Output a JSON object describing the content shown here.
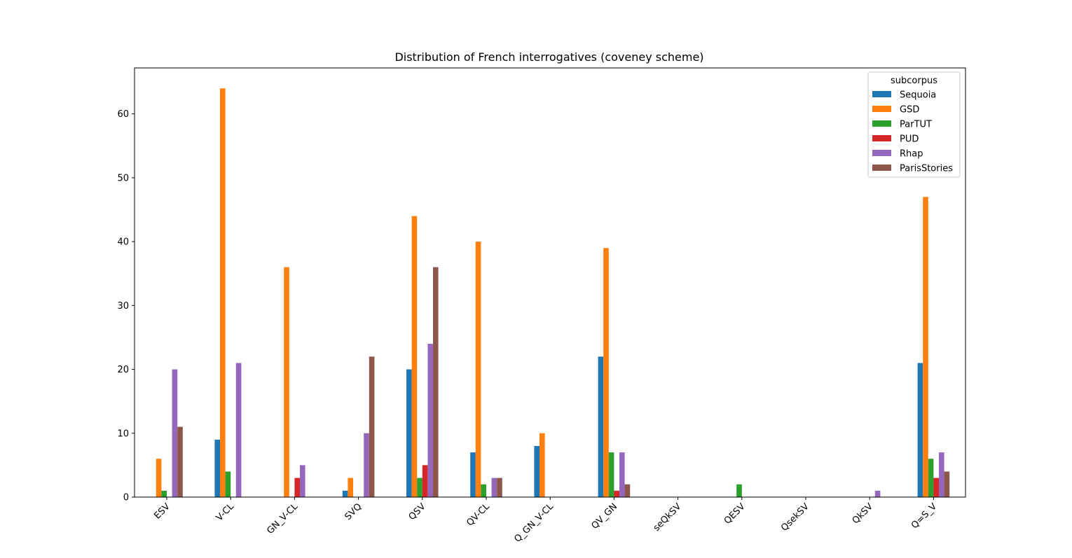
{
  "chart_data": {
    "type": "bar",
    "title": "Distribution of French interrogatives  (coveney scheme)",
    "xlabel": "",
    "ylabel": "",
    "ylim": [
      0,
      67.2
    ],
    "yticks": [
      0,
      10,
      20,
      30,
      40,
      50,
      60
    ],
    "grid": false,
    "legend": {
      "title": "subcorpus",
      "placement": "top-right"
    },
    "categories": [
      "ESV",
      "V-CL",
      "GN_V-CL",
      "SVQ",
      "QSV",
      "QV-CL",
      "Q_GN_V-CL",
      "QV_GN",
      "seQkSV",
      "QESV",
      "QsekSV",
      "QkSV",
      "Q=S_V"
    ],
    "series": [
      {
        "name": "Sequoia",
        "color": "#1f77b4",
        "values": [
          0,
          9,
          0,
          1,
          20,
          7,
          8,
          22,
          0,
          0,
          0,
          0,
          21
        ]
      },
      {
        "name": "GSD",
        "color": "#ff7f0e",
        "values": [
          6,
          64,
          36,
          3,
          44,
          40,
          10,
          39,
          0,
          0,
          0,
          0,
          47
        ]
      },
      {
        "name": "ParTUT",
        "color": "#2ca02c",
        "values": [
          1,
          4,
          0,
          0,
          3,
          2,
          0,
          7,
          0,
          2,
          0,
          0,
          6
        ]
      },
      {
        "name": "PUD",
        "color": "#d62728",
        "values": [
          0,
          0,
          3,
          0,
          5,
          0,
          0,
          1,
          0,
          0,
          0,
          0,
          3
        ]
      },
      {
        "name": "Rhap",
        "color": "#9467bd",
        "values": [
          20,
          21,
          5,
          10,
          24,
          3,
          0,
          7,
          0,
          0,
          0,
          1,
          7
        ]
      },
      {
        "name": "ParisStories",
        "color": "#8c564b",
        "values": [
          11,
          0,
          0,
          22,
          36,
          3,
          0,
          2,
          0,
          0,
          0,
          0,
          4
        ]
      }
    ]
  }
}
